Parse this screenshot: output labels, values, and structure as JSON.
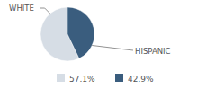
{
  "chart_data": {
    "type": "pie",
    "categories": [
      "WHITE",
      "HISPANIC"
    ],
    "values": [
      57.1,
      42.9
    ],
    "value_labels": [
      "57.1%",
      "42.9%"
    ],
    "colors": [
      "#d6dde5",
      "#3a5d7e"
    ],
    "legend": "bottom"
  }
}
